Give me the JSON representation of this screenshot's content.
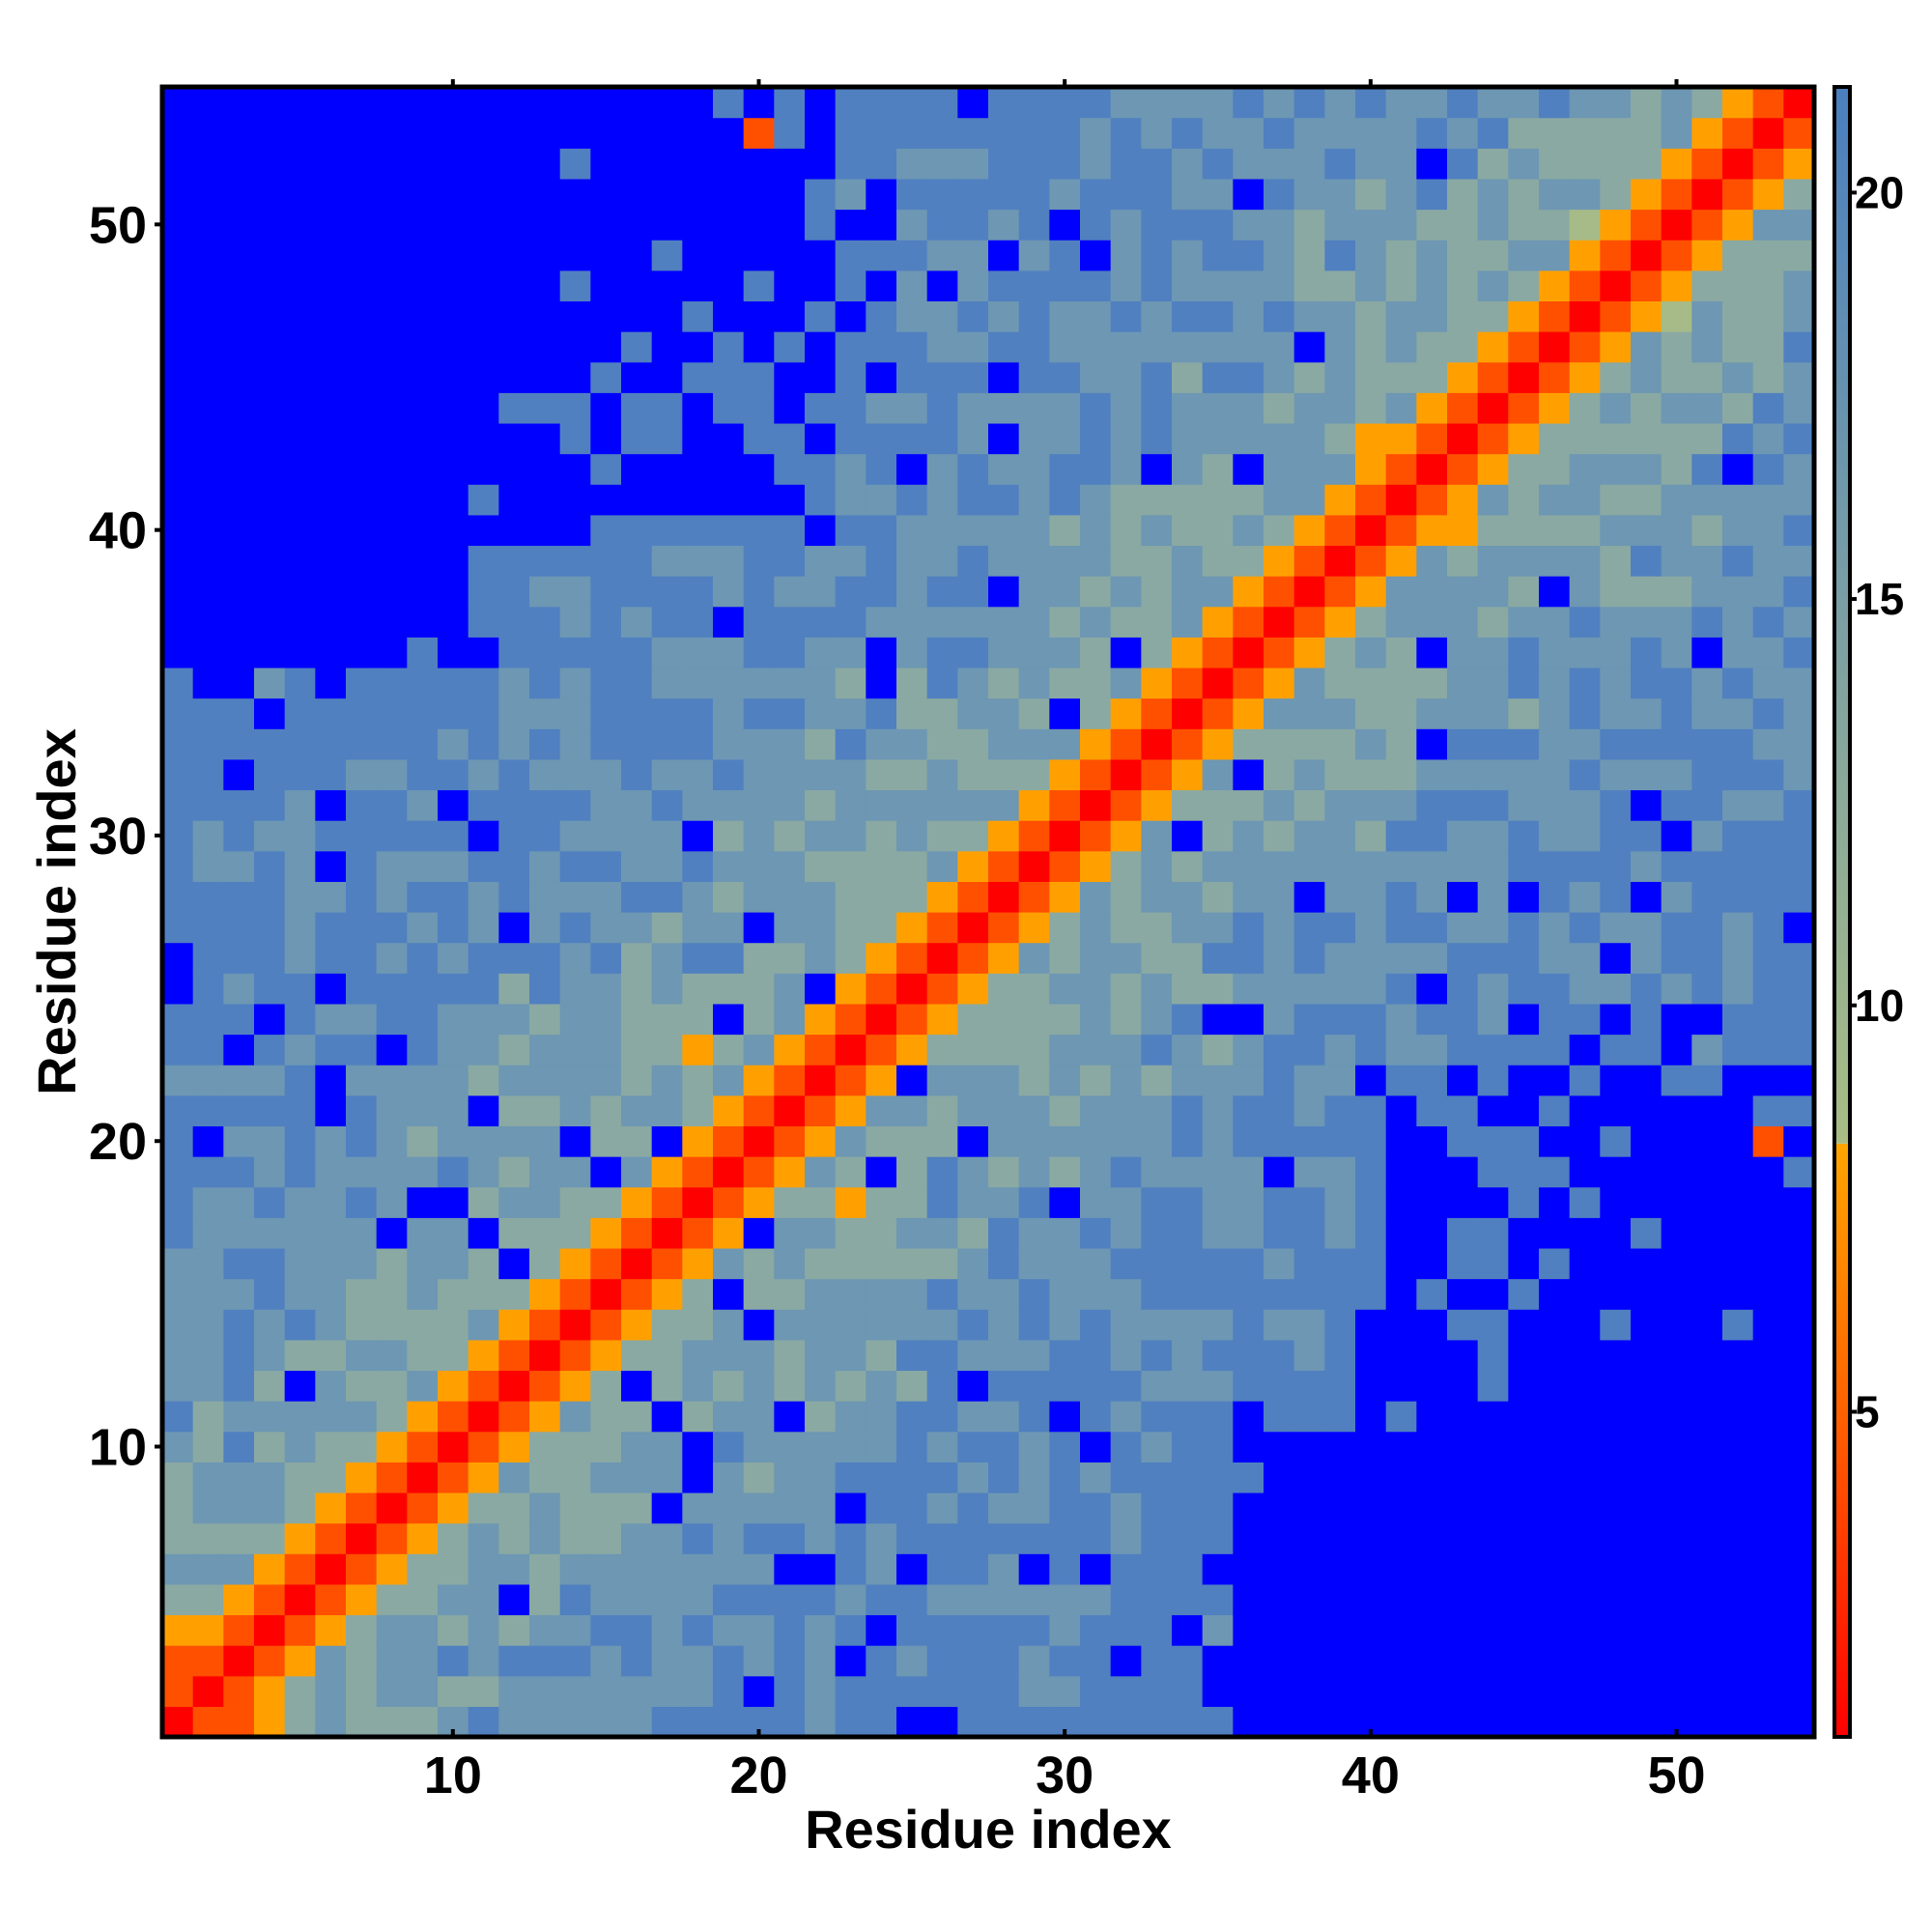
{
  "chart_data": {
    "type": "heatmap",
    "title": "",
    "xlabel": "Residue index",
    "ylabel": "Residue index",
    "x_range": [
      1,
      54
    ],
    "y_range": [
      1,
      54
    ],
    "x_ticks": [
      10,
      20,
      30,
      40,
      50
    ],
    "y_ticks": [
      10,
      20,
      30,
      40,
      50
    ],
    "n_residues": 54,
    "symmetric": true,
    "colorbar": {
      "range": [
        1,
        21.3
      ],
      "ticks": [
        5,
        10,
        15,
        20
      ],
      "position": "right",
      "bands": [
        {
          "from": 1,
          "to": 8.3,
          "colors": [
            "#ff0000",
            "#ff5a00",
            "#ffa500"
          ]
        },
        {
          "from": 8.3,
          "to": 21.3,
          "colors": [
            "#a8bd84",
            "#7ba0a4",
            "#4a7fc0"
          ]
        }
      ]
    },
    "colors": {
      "diagonal": "#ff0000",
      "very_close": "#ff5000",
      "close": "#ffa000",
      "mid_near": "#a7bb88",
      "mid": "#8aa9a3",
      "mid_far": "#6d97b3",
      "far": "#5080c0",
      "beyond": "#0000ff"
    },
    "values_note": "",
    "pair_distances": [
      {
        "i": 1,
        "j": 1,
        "v": 1
      },
      {
        "i": 1,
        "j": 2,
        "v": 2
      },
      {
        "i": 1,
        "j": 3,
        "v": 5
      },
      {
        "i": 2,
        "j": 3,
        "v": 2
      },
      {
        "i": 3,
        "j": 4,
        "v": 2
      },
      {
        "i": 1,
        "j": 4,
        "v": 7
      },
      {
        "i": 12,
        "j": 52,
        "v": 21.3
      },
      {
        "i": 44,
        "j": 8,
        "v": 21.3
      },
      {
        "i": 23,
        "j": 18,
        "v": 6
      },
      {
        "i": 43,
        "j": 40,
        "v": 6
      },
      {
        "i": 53,
        "j": 20,
        "v": 5.5
      },
      {
        "i": 30,
        "j": 30,
        "v": 1
      }
    ]
  }
}
